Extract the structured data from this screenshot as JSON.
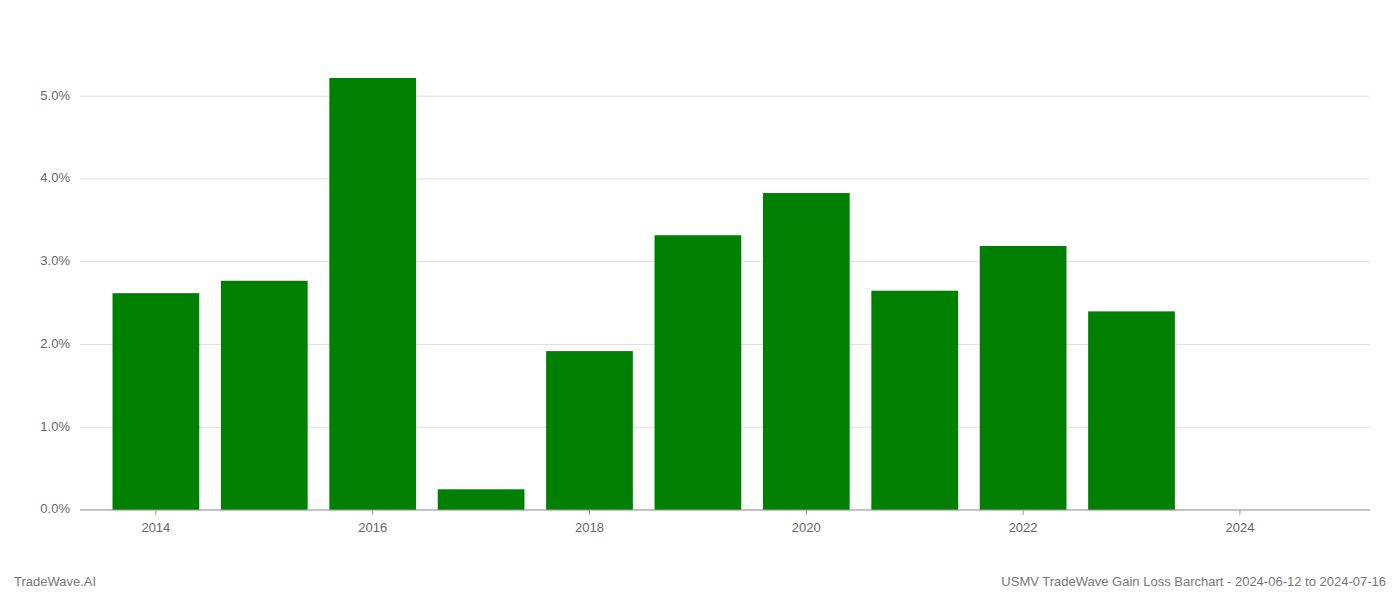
{
  "chart_data": {
    "type": "bar",
    "title": "USMV TradeWave Gain Loss Barchart - 2024-06-12 to 2024-07-16",
    "annotations": [
      "TradeWave.AI"
    ],
    "x": [
      2014,
      2015,
      2016,
      2017,
      2018,
      2019,
      2020,
      2021,
      2022,
      2023
    ],
    "values": [
      0.0262,
      0.0277,
      0.0522,
      0.0025,
      0.0192,
      0.0332,
      0.0383,
      0.0265,
      0.0319,
      0.024
    ],
    "color": "#008000",
    "xlim": [
      2013.3,
      2025.2
    ],
    "xticks": [
      2014,
      2016,
      2018,
      2020,
      2022,
      2024
    ],
    "ylim": [
      0.0,
      0.058
    ],
    "yticks": [
      {
        "value": 0.0,
        "label": "0.0%"
      },
      {
        "value": 0.01,
        "label": "1.0%"
      },
      {
        "value": 0.02,
        "label": "2.0%"
      },
      {
        "value": 0.03,
        "label": "3.0%"
      },
      {
        "value": 0.04,
        "label": "4.0%"
      },
      {
        "value": 0.05,
        "label": "5.0%"
      }
    ],
    "grid": true
  }
}
